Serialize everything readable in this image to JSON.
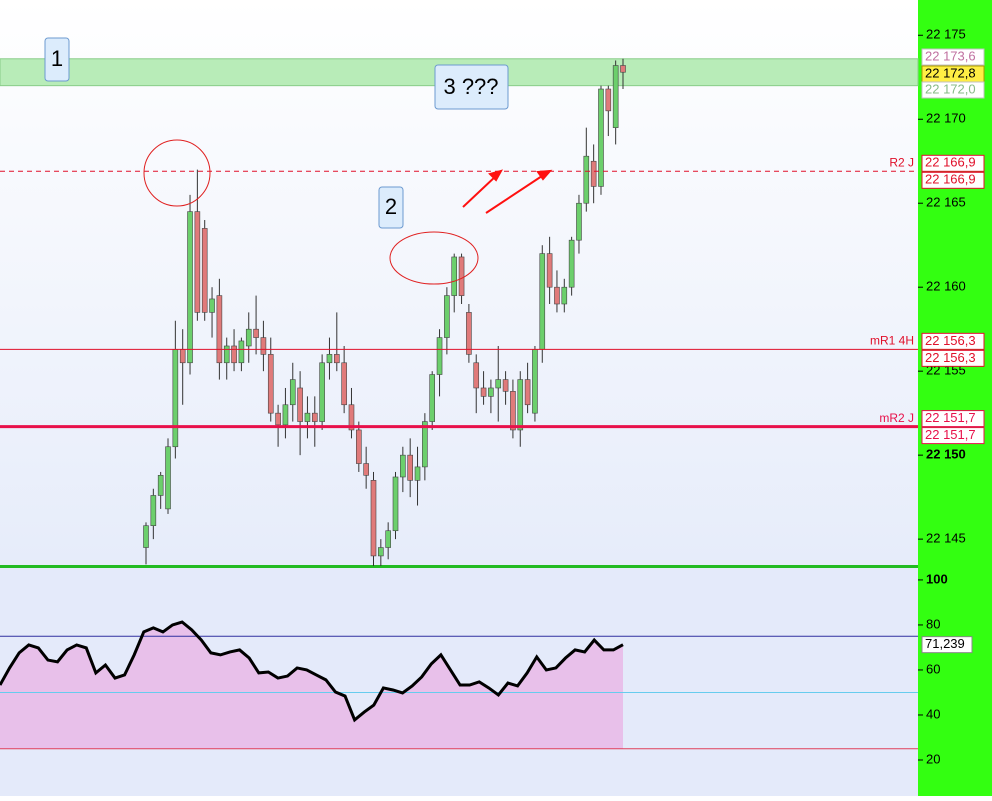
{
  "chart_data": [
    {
      "type": "candlestick",
      "open": [
        22144.5,
        22145.8,
        22147.6,
        22146.8,
        22150.5,
        22156.3,
        22155.5,
        22164.5,
        22163.5,
        22158.5,
        22159.5,
        22155.5,
        22156.5,
        22155.5,
        22156.5,
        22157.5,
        22157.0,
        22156.0,
        22152.5,
        22151.8,
        22153.0,
        22154.0,
        22152.0,
        22152.5,
        22152.0,
        22155.5,
        22156.0,
        22155.5,
        22153.0,
        22151.5,
        22149.5,
        22148.5,
        22144.0,
        22144.5,
        22145.5,
        22148.7,
        22150.0,
        22148.5,
        22149.3,
        22152.0,
        22154.8,
        22157.0,
        22159.5,
        22161.8,
        22158.5,
        22155.5,
        22154.0,
        22153.5,
        22154.0,
        22154.5,
        22153.8,
        22151.5,
        22154.5,
        22152.5,
        22156.3,
        22162.0,
        22160.0,
        22159.0,
        22160.0,
        22162.8,
        22165.0,
        22167.5,
        22166.0,
        22171.8,
        22169.5,
        22173.2
      ],
      "high": [
        22146.0,
        22148.0,
        22149.0,
        22151.0,
        22158.0,
        22157.5,
        22165.5,
        22167.0,
        22164.0,
        22160.0,
        22160.5,
        22157.0,
        22157.5,
        22157.0,
        22158.5,
        22159.5,
        22158.0,
        22157.0,
        22153.0,
        22154.0,
        22155.5,
        22155.0,
        22153.5,
        22153.5,
        22156.0,
        22157.0,
        22158.5,
        22156.5,
        22154.0,
        22152.0,
        22150.5,
        22149.0,
        22145.0,
        22146.0,
        22149.0,
        22150.5,
        22151.0,
        22150.5,
        22152.5,
        22155.0,
        22157.5,
        22160.0,
        22162.0,
        22162.0,
        22159.0,
        22156.0,
        22155.0,
        22154.5,
        22156.5,
        22155.0,
        22154.5,
        22155.0,
        22155.5,
        22156.5,
        22162.5,
        22163.0,
        22161.0,
        22160.5,
        22163.0,
        22165.5,
        22169.5,
        22168.5,
        22172.0,
        22172.0,
        22173.5,
        22173.6
      ],
      "low": [
        22143.5,
        22145.0,
        22146.8,
        22146.5,
        22149.8,
        22153.0,
        22154.8,
        22158.0,
        22158.0,
        22157.0,
        22154.5,
        22154.5,
        22155.0,
        22155.0,
        22155.5,
        22156.0,
        22155.0,
        22152.0,
        22150.5,
        22151.0,
        22152.0,
        22150.0,
        22151.0,
        22150.5,
        22151.5,
        22154.5,
        22155.0,
        22152.5,
        22151.0,
        22149.0,
        22148.0,
        22143.4,
        22143.4,
        22143.8,
        22145.0,
        22147.8,
        22147.5,
        22147.0,
        22148.5,
        22151.5,
        22153.5,
        22156.0,
        22158.5,
        22159.0,
        22155.5,
        22152.5,
        22153.0,
        22152.5,
        22152.0,
        22153.0,
        22151.0,
        22150.5,
        22152.5,
        22152.0,
        22155.5,
        22159.0,
        22158.5,
        22158.5,
        22159.5,
        22162.0,
        22164.5,
        22165.0,
        22165.5,
        22169.0,
        22168.5,
        22171.8
      ],
      "close": [
        22145.8,
        22147.6,
        22148.8,
        22150.5,
        22156.3,
        22155.5,
        22164.5,
        22158.5,
        22158.5,
        22159.3,
        22155.5,
        22156.5,
        22155.5,
        22156.8,
        22157.5,
        22157.0,
        22156.0,
        22152.5,
        22151.8,
        22153.0,
        22154.5,
        22152.0,
        22152.5,
        22152.0,
        22155.5,
        22156.0,
        22155.5,
        22153.0,
        22151.5,
        22149.5,
        22148.8,
        22144.0,
        22144.5,
        22145.5,
        22148.7,
        22150.0,
        22148.5,
        22149.3,
        22152.0,
        22154.8,
        22157.0,
        22159.5,
        22161.8,
        22159.5,
        22156.0,
        22154.0,
        22153.5,
        22154.0,
        22154.5,
        22153.8,
        22151.5,
        22154.5,
        22153.0,
        22156.3,
        22162.0,
        22160.0,
        22159.0,
        22160.0,
        22162.8,
        22165.0,
        22167.8,
        22166.0,
        22171.8,
        22170.5,
        22173.2,
        22172.8
      ],
      "up_color": "#6ccf6c",
      "down_color": "#e07a7a",
      "ylim": [
        22143.4,
        22177.1
      ],
      "yticks": [
        {
          "value": 22175,
          "label": "22 175"
        },
        {
          "value": 22170,
          "label": "22 170"
        },
        {
          "value": 22165,
          "label": "22 165"
        },
        {
          "value": 22160,
          "label": "22 160"
        },
        {
          "value": 22155,
          "label": "22 155"
        },
        {
          "value": 22150,
          "label": "22 150"
        },
        {
          "value": 22145,
          "label": "22 145"
        }
      ],
      "zone": {
        "from": 22172.0,
        "to": 22173.6,
        "from_label": "22 172,0",
        "to_label": "22 173,6",
        "color": "#b8ecb8"
      },
      "last": {
        "value": 22172.8,
        "label": "22 172,8"
      },
      "levels": [
        {
          "name": "R2 J",
          "value": 22166.9,
          "value_labels": [
            "22 166,9",
            "22 166,9"
          ],
          "color": "#e0102a",
          "style": "dashed"
        },
        {
          "name": "mR1 4H",
          "value": 22156.3,
          "value_labels": [
            "22 156,3",
            "22 156,3"
          ],
          "color": "#e0102a",
          "style": "thin"
        },
        {
          "name": "mR2 J",
          "value": 22151.7,
          "value_labels": [
            "22 151,7",
            "22 151,7"
          ],
          "color": "#e8104a",
          "style": "thick"
        }
      ],
      "annotations": [
        "1",
        "2",
        "3 ???"
      ]
    },
    {
      "type": "line",
      "series": [
        {
          "color": "#000000",
          "values": [
            53.3,
            60.9,
            67.6,
            71.1,
            69.8,
            64.4,
            63.6,
            68.9,
            71.1,
            69.8,
            58.7,
            62.2,
            56.4,
            57.8,
            66.7,
            76.9,
            78.7,
            76.9,
            80,
            81.3,
            77.8,
            73.3,
            67.6,
            66.7,
            68,
            68.9,
            65.3,
            58.7,
            59.1,
            56.4,
            57.3,
            60.9,
            60,
            57.8,
            55.6,
            50.2,
            48.4,
            37.8,
            41.3,
            44.4,
            52,
            51.1,
            49.8,
            52.9,
            56.9,
            62.7,
            66.7,
            60,
            53.3,
            53.3,
            54.7,
            52,
            48.9,
            54.2,
            52.9,
            58.7,
            65.8,
            60,
            60.9,
            65.3,
            68.9,
            68,
            73.3,
            68.9,
            68.9,
            71.239
          ]
        }
      ],
      "last_value_label": "71,239",
      "fill_color": "#e8c0ea",
      "ylim": [
        4,
        105.3
      ],
      "yticks": [
        100,
        80,
        60,
        40,
        20
      ],
      "levels": [
        {
          "value": 75,
          "color": "#3030a0"
        },
        {
          "value": 50,
          "color": "#66ccee"
        },
        {
          "value": 25,
          "color": "#e0405a"
        }
      ]
    }
  ]
}
